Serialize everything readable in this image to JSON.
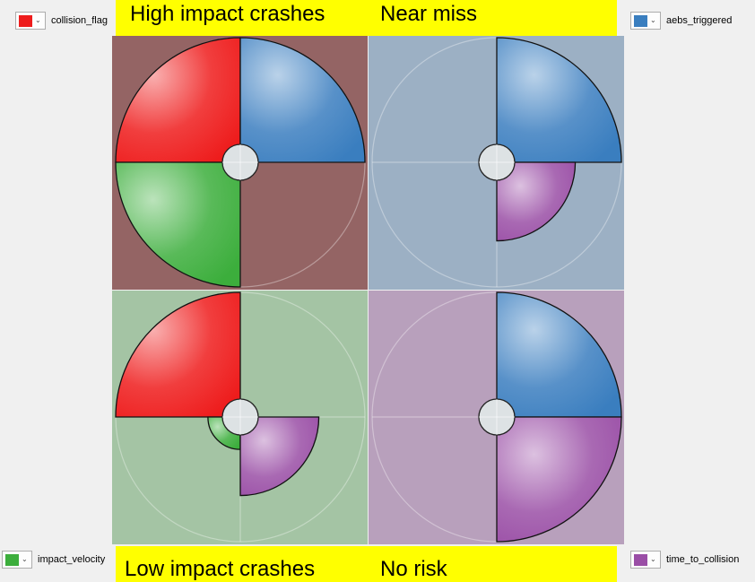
{
  "banners": {
    "top_left": "High impact crashes",
    "top_right": "Near miss",
    "bottom_left": "Low impact crashes",
    "bottom_right": "No risk"
  },
  "pickers": [
    {
      "label": "collision_flag",
      "color": "#ee1c1c"
    },
    {
      "label": "aebs_triggered",
      "color": "#3a7ebf"
    },
    {
      "label": "impact_velocity",
      "color": "#3cae3c"
    },
    {
      "label": "time_to_collision",
      "color": "#9a4ea6"
    }
  ],
  "chart_data": {
    "type": "polar-quadrant-glyphs",
    "variables": [
      "collision_flag",
      "aebs_triggered",
      "impact_velocity",
      "time_to_collision"
    ],
    "variable_colors": {
      "collision_flag": "#ee1c1c",
      "aebs_triggered": "#3a7ebf",
      "impact_velocity": "#3cae3c",
      "time_to_collision": "#9a4ea6"
    },
    "panels": [
      {
        "label": "High impact crashes",
        "background": "#946464",
        "values": {
          "collision_flag": 1.0,
          "aebs_triggered": 1.0,
          "impact_velocity": 1.0,
          "time_to_collision": 0.0
        }
      },
      {
        "label": "Near miss",
        "background": "#9cb0c4",
        "values": {
          "collision_flag": 0.0,
          "aebs_triggered": 1.0,
          "impact_velocity": 0.0,
          "time_to_collision": 0.63
        }
      },
      {
        "label": "Low impact crashes",
        "background": "#a4c4a4",
        "values": {
          "collision_flag": 1.0,
          "aebs_triggered": 0.0,
          "impact_velocity": 0.26,
          "time_to_collision": 0.63
        }
      },
      {
        "label": "No risk",
        "background": "#b8a0bc",
        "values": {
          "collision_flag": 0.0,
          "aebs_triggered": 1.0,
          "impact_velocity": 0.0,
          "time_to_collision": 1.0
        }
      }
    ]
  }
}
